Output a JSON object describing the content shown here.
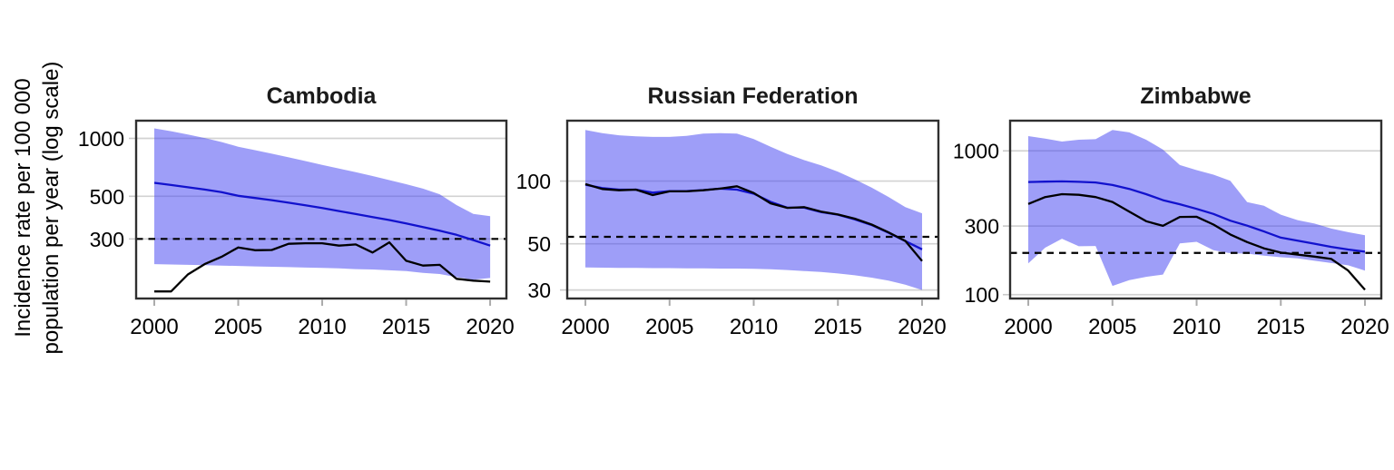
{
  "figure": {
    "y_axis_label": [
      "Incidence rate per 100 000",
      "population per year (log scale)"
    ],
    "background": "#FFFFFF"
  },
  "style": {
    "band_fill": "rgba(61,61,242,0.50)",
    "estimate_line_color": "#1212CD",
    "notification_line_color": "#000000",
    "dashed_line_color": "#000000",
    "gridline_color": "#D2D2D2",
    "panel_border_color": "#2F2F2F",
    "axis_tick_color": "#ABABAB",
    "text_color": "#000000"
  },
  "chart_data": [
    {
      "type": "line",
      "title": "Cambodia",
      "log_scale": true,
      "x": [
        2000,
        2001,
        2002,
        2003,
        2004,
        2005,
        2006,
        2007,
        2008,
        2009,
        2010,
        2011,
        2012,
        2013,
        2014,
        2015,
        2016,
        2017,
        2018,
        2019,
        2020
      ],
      "xticks": [
        2000,
        2005,
        2010,
        2015,
        2020
      ],
      "yticks": [
        1000,
        500,
        300
      ],
      "xlim": [
        1998.92,
        2020.97
      ],
      "ylim": [
        147,
        1236
      ],
      "dashed_reference_value": 300,
      "band": {
        "name": "uncertainty-interval",
        "upper": [
          1127,
          1090,
          1048,
          1004,
          958,
          905,
          868,
          832,
          797,
          762,
          728,
          697,
          667,
          637,
          607,
          578,
          548,
          512,
          450,
          405,
          394
        ],
        "lower": [
          222,
          221,
          220,
          219,
          218,
          217,
          216,
          215,
          214,
          213,
          212,
          211,
          209,
          208,
          206,
          204,
          200,
          197,
          190,
          184,
          188
        ]
      },
      "series": [
        {
          "name": "estimated-incidence",
          "color_key": "estimate_line_color",
          "values": [
            587,
            572,
            557,
            542,
            525,
            503,
            490,
            477,
            463,
            449,
            434,
            419,
            404,
            390,
            376,
            361,
            346,
            331,
            315,
            296,
            277
          ]
        },
        {
          "name": "notifications",
          "color_key": "notification_line_color",
          "values": [
            160,
            160,
            196,
            222,
            242,
            271,
            262,
            263,
            283,
            285,
            285,
            277,
            281,
            255,
            288,
            231,
            218,
            220,
            186,
            182,
            180
          ]
        }
      ]
    },
    {
      "type": "line",
      "title": "Russian Federation",
      "log_scale": true,
      "x": [
        2000,
        2001,
        2002,
        2003,
        2004,
        2005,
        2006,
        2007,
        2008,
        2009,
        2010,
        2011,
        2012,
        2013,
        2014,
        2015,
        2016,
        2017,
        2018,
        2019,
        2020
      ],
      "xticks": [
        2000,
        2005,
        2010,
        2015,
        2020
      ],
      "yticks": [
        100,
        50,
        30
      ],
      "xlim": [
        1998.92,
        2020.97
      ],
      "ylim": [
        27.3,
        195
      ],
      "dashed_reference_value": 54,
      "band": {
        "name": "uncertainty-interval",
        "upper": [
          176,
          170,
          166,
          164,
          163,
          163,
          165,
          169,
          170,
          169,
          159,
          146,
          135,
          126,
          119,
          111,
          102,
          93,
          84,
          75,
          70
        ],
        "lower": [
          38.5,
          38.4,
          38.3,
          38.3,
          38.2,
          38.2,
          38.1,
          38.1,
          38,
          38,
          37.9,
          37.7,
          37.4,
          37,
          36.6,
          36,
          35.3,
          34.4,
          33.3,
          31.8,
          30
        ]
      },
      "series": [
        {
          "name": "estimated-incidence",
          "color_key": "estimate_line_color",
          "values": [
            96,
            92.5,
            91,
            91,
            88,
            89.5,
            89.5,
            90.5,
            92,
            91,
            87,
            79.5,
            74.5,
            74.5,
            71,
            69,
            65.5,
            61.5,
            56.5,
            51.5,
            47
          ]
        },
        {
          "name": "notifications",
          "color_key": "notification_line_color",
          "values": [
            96.7,
            91.6,
            90.3,
            91,
            85.7,
            89.3,
            89.3,
            90.3,
            92,
            94.4,
            87.7,
            78.2,
            74.4,
            75,
            71.4,
            69.1,
            66,
            61.9,
            56.8,
            51.6,
            41.3
          ]
        }
      ]
    },
    {
      "type": "line",
      "title": "Zimbabwe",
      "log_scale": true,
      "x": [
        2000,
        2001,
        2002,
        2003,
        2004,
        2005,
        2006,
        2007,
        2008,
        2009,
        2010,
        2011,
        2012,
        2013,
        2014,
        2015,
        2016,
        2017,
        2018,
        2019,
        2020
      ],
      "xticks": [
        2000,
        2005,
        2010,
        2015,
        2020
      ],
      "yticks": [
        1000,
        300,
        100
      ],
      "xlim": [
        1998.92,
        2020.97
      ],
      "ylim": [
        94,
        1621
      ],
      "dashed_reference_value": 195,
      "band": {
        "name": "uncertainty-interval",
        "upper": [
          1267,
          1218,
          1160,
          1195,
          1205,
          1396,
          1343,
          1195,
          1020,
          797,
          734,
          683,
          620,
          440,
          415,
          360,
          330,
          312,
          288,
          272,
          259
        ],
        "lower": [
          165,
          212,
          245,
          217,
          218,
          115,
          126,
          133,
          138,
          227,
          233,
          204,
          194,
          193,
          187,
          182,
          179,
          172,
          166,
          160,
          147
        ]
      },
      "series": [
        {
          "name": "estimated-incidence",
          "color_key": "estimate_line_color",
          "values": [
            607,
            611,
            613,
            609,
            603,
            579,
            544,
            500,
            454,
            425,
            395,
            364,
            327,
            302,
            275,
            249,
            237,
            226,
            215,
            206,
            199
          ]
        },
        {
          "name": "notifications",
          "color_key": "notification_line_color",
          "values": [
            427,
            477,
            500,
            495,
            477,
            441,
            378,
            324,
            301,
            347,
            348,
            307,
            262,
            232,
            210,
            196,
            190,
            184,
            177,
            147,
            108
          ]
        }
      ]
    }
  ]
}
